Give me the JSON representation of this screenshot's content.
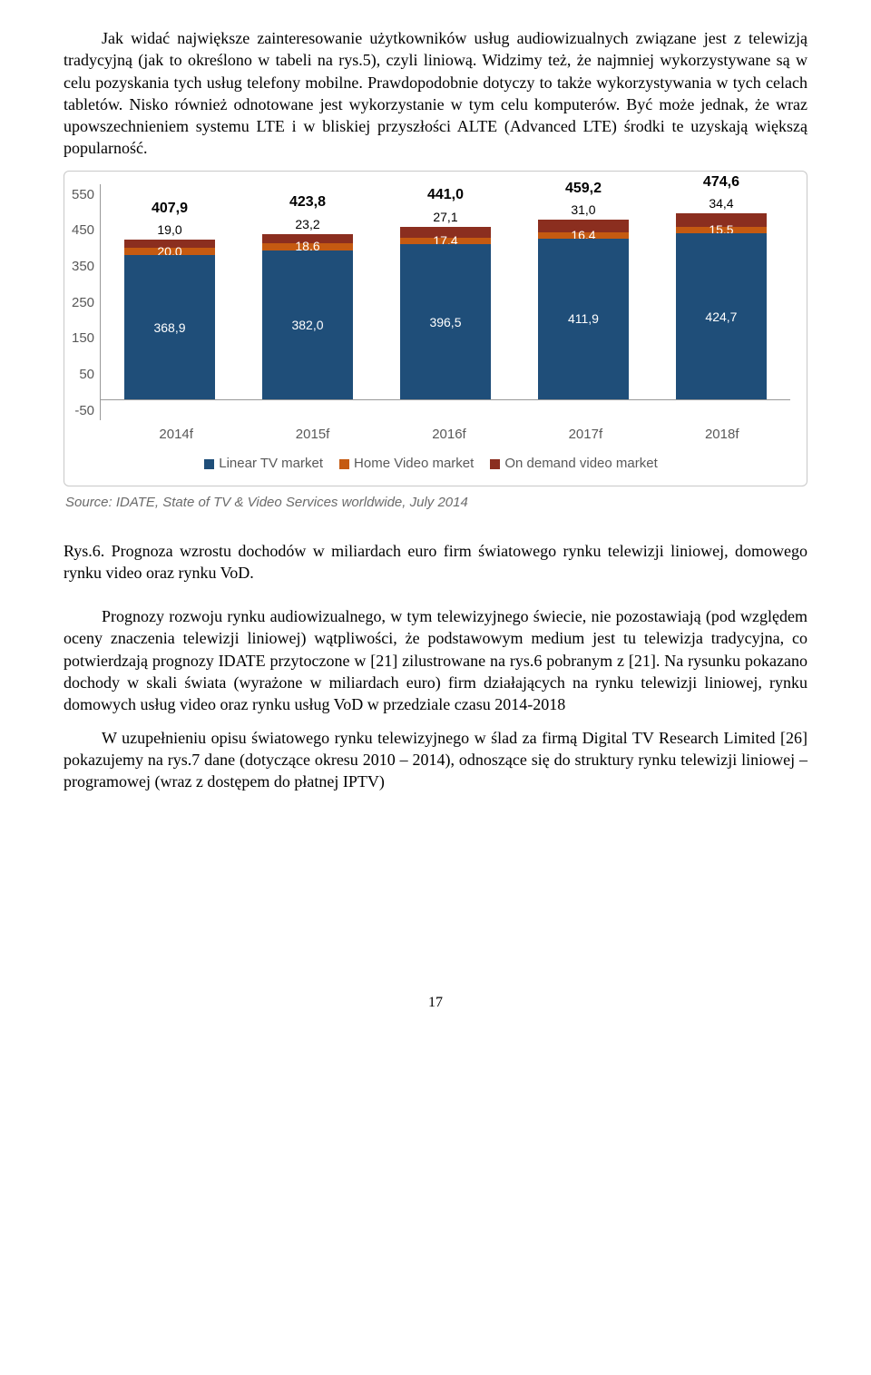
{
  "para1": "Jak widać   największe zainteresowanie użytkowników usług audiowizualnych związane jest z telewizją tradycyjną (jak to określono w tabeli na rys.5), czyli liniową. Widzimy też, że najmniej wykorzystywane są w celu pozyskania tych usług telefony mobilne. Prawdopodobnie dotyczy to także wykorzystywania w tych celach tabletów. Nisko również odnotowane jest wykorzystanie w tym celu komputerów. Być może jednak, że wraz upowszechnieniem systemu LTE i w bliskiej przyszłości ALTE (Advanced LTE) środki te uzyskają większą popularność.",
  "chart": {
    "y_ticks": [
      "550",
      "450",
      "350",
      "250",
      "150",
      "50",
      "-50"
    ],
    "y_min": -50,
    "y_max": 550,
    "baseline_value": 0,
    "bars": [
      {
        "cat": "2014f",
        "total": "407,9",
        "seg3": "19,0",
        "seg2": "20,0",
        "seg1": "368,9",
        "v3": 19.0,
        "v2": 20.0,
        "v1": 368.9
      },
      {
        "cat": "2015f",
        "total": "423,8",
        "seg3": "23,2",
        "seg2": "18,6",
        "seg1": "382,0",
        "v3": 23.2,
        "v2": 18.6,
        "v1": 382.0
      },
      {
        "cat": "2016f",
        "total": "441,0",
        "seg3": "27,1",
        "seg2": "17,4",
        "seg1": "396,5",
        "v3": 27.1,
        "v2": 17.4,
        "v1": 396.5
      },
      {
        "cat": "2017f",
        "total": "459,2",
        "seg3": "31,0",
        "seg2": "16,4",
        "seg1": "411,9",
        "v3": 31.0,
        "v2": 16.4,
        "v1": 411.9
      },
      {
        "cat": "2018f",
        "total": "474,6",
        "seg3": "34,4",
        "seg2": "15,5",
        "seg1": "424,7",
        "v3": 34.4,
        "v2": 15.5,
        "v1": 424.7
      }
    ],
    "colors": {
      "linear": "#1f4e79",
      "home": "#c55a11",
      "demand": "#8b2e1f"
    },
    "legend": [
      {
        "label": "Linear TV market",
        "key": "linear"
      },
      {
        "label": "Home Video market",
        "key": "home"
      },
      {
        "label": "On demand video market",
        "key": "demand"
      }
    ]
  },
  "source": "Source: IDATE, State of TV & Video Services worldwide, July 2014",
  "caption": "Rys.6. Prognoza wzrostu dochodów w miliardach euro firm światowego rynku telewizji liniowej, domowego rynku video oraz rynku VoD.",
  "para2": "Prognozy rozwoju rynku audiowizualnego, w tym telewizyjnego świecie, nie pozostawiają (pod względem oceny znaczenia telewizji liniowej) wątpliwości, że podstawowym medium jest tu telewizja tradycyjna, co potwierdzają prognozy IDATE przytoczone w [21] zilustrowane na rys.6 pobranym z [21]. Na rysunku pokazano dochody w skali świata (wyrażone w miliardach euro) firm działających na rynku telewizji liniowej, rynku domowych usług video oraz rynku usług VoD w przedziale czasu 2014-2018",
  "para3": "W uzupełnieniu opisu światowego rynku telewizyjnego w ślad za firmą Digital TV Research Limited [26] pokazujemy na rys.7 dane (dotyczące okresu 2010 – 2014), odnoszące się do struktury rynku telewizji liniowej – programowej (wraz z dostępem do płatnej IPTV)",
  "page_number": "17"
}
